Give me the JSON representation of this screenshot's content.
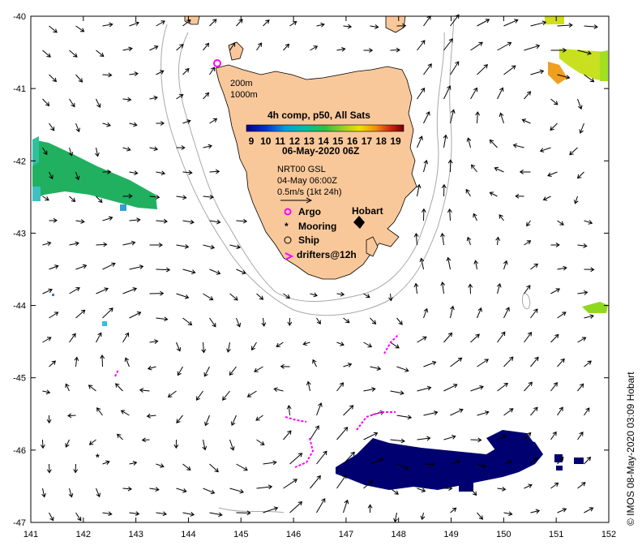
{
  "axes": {
    "lon_ticks": [
      "141",
      "142",
      "143",
      "144",
      "145",
      "146",
      "147",
      "148",
      "149",
      "150",
      "151",
      "152"
    ],
    "lat_ticks": [
      "-40",
      "-41",
      "-42",
      "-43",
      "-44",
      "-45",
      "-46",
      "-47"
    ]
  },
  "depth_contours": [
    "200m",
    "1000m"
  ],
  "product_title": "4h comp, p50, All Sats",
  "colorbar_ticks": [
    "9",
    "10",
    "11",
    "12",
    "13",
    "14",
    "15",
    "16",
    "17",
    "18",
    "19"
  ],
  "date_label": "06-May-2020 06Z",
  "current_source": "NRT00 GSL",
  "current_date": "04-May 06:00Z",
  "scale_label": "0.5m/s (1kt 24h)",
  "place_label": "Hobart",
  "legend": {
    "argo": "Argo",
    "mooring": "Mooring",
    "ship": "Ship",
    "drifters": "drifters@12h"
  },
  "credit": "© IMOS 08-May-2020 03:09 Hobart",
  "colors": {
    "land": "#f9c89a",
    "argo": "#ff00ff",
    "drifter": "#ff00ff",
    "sst_cold": "#000070",
    "sst_green": "#20b060",
    "sst_orange": "#f0a020"
  }
}
